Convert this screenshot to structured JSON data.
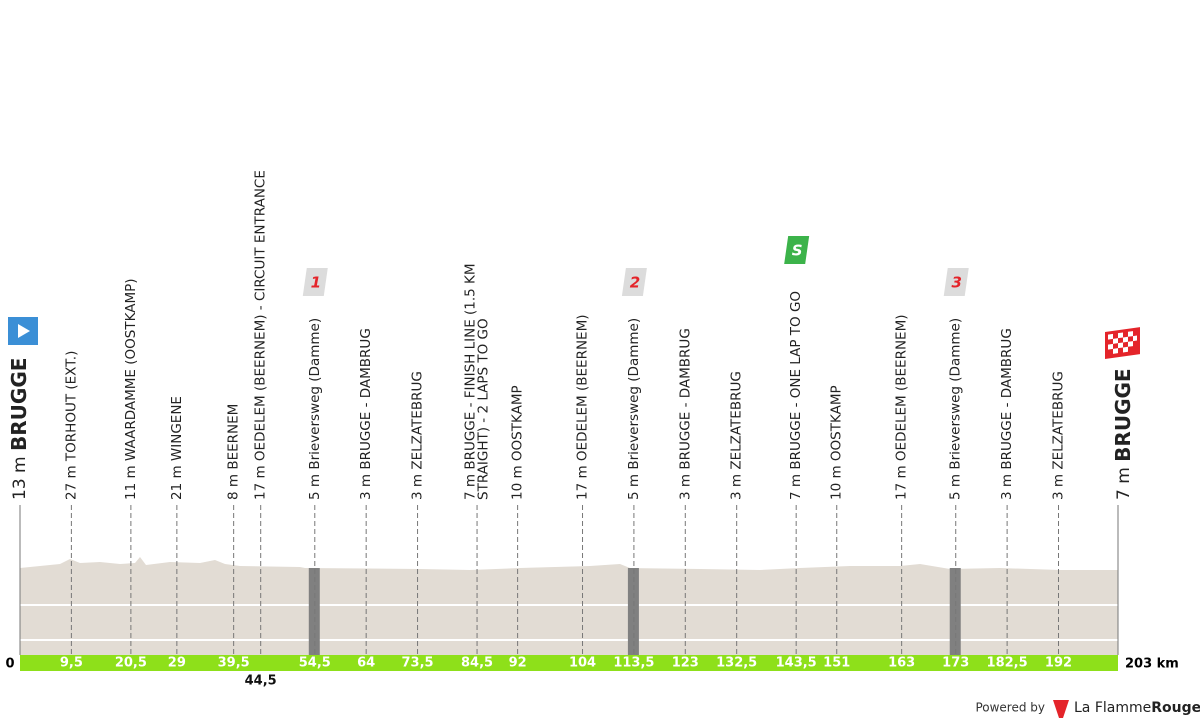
{
  "start": {
    "elevation": "13 m",
    "name": "BRUGGE",
    "km": "0"
  },
  "finish": {
    "elevation": "7 m",
    "name": "BRUGGE",
    "km": "203 km"
  },
  "waypoints": [
    {
      "lines": [
        "27 m TORHOUT (EXT.)"
      ],
      "km": "9,5"
    },
    {
      "lines": [
        "11 m WAARDAMME (OOSTKAMP)"
      ],
      "km": "20,5"
    },
    {
      "lines": [
        "21 m WINGENE"
      ],
      "km": "29"
    },
    {
      "lines": [
        "8 m BEERNEM"
      ],
      "km": "39,5"
    },
    {
      "lines": [
        "17 m OEDELEM (BEERNEM) - CIRCUIT ENTRANCE"
      ],
      "km": "44,5",
      "km_below": true
    },
    {
      "lines": [
        "5 m Brieversweg (Damme)"
      ],
      "km": "54,5",
      "badge": "1",
      "badge_color": "#dcdcdc",
      "sector": true
    },
    {
      "lines": [
        "3 m BRUGGE - DAMBRUG"
      ],
      "km": "64"
    },
    {
      "lines": [
        "3 m ZELZATEBRUG"
      ],
      "km": "73,5"
    },
    {
      "lines": [
        "7 m BRUGGE - FINISH LINE (1.5 KM",
        "STRAIGHT) - 2 LAPS TO GO"
      ],
      "km": "84,5"
    },
    {
      "lines": [
        "10 m OOSTKAMP"
      ],
      "km": "92"
    },
    {
      "lines": [
        "17 m OEDELEM (BEERNEM)"
      ],
      "km": "104"
    },
    {
      "lines": [
        "5 m Brieversweg (Damme)"
      ],
      "km": "113,5",
      "badge": "2",
      "badge_color": "#dcdcdc",
      "sector": true
    },
    {
      "lines": [
        "3 m BRUGGE - DAMBRUG"
      ],
      "km": "123"
    },
    {
      "lines": [
        "3 m ZELZATEBRUG"
      ],
      "km": "132,5"
    },
    {
      "lines": [
        "7 m BRUGGE - ONE LAP TO GO"
      ],
      "km": "143,5",
      "badge": "S",
      "badge_color": "#3cb34a"
    },
    {
      "lines": [
        "10 m OOSTKAMP"
      ],
      "km": "151"
    },
    {
      "lines": [
        "17 m OEDELEM (BEERNEM)"
      ],
      "km": "163"
    },
    {
      "lines": [
        "5 m Brieversweg (Damme)"
      ],
      "km": "173",
      "badge": "3",
      "badge_color": "#dcdcdc",
      "sector": true
    },
    {
      "lines": [
        "3 m BRUGGE - DAMBRUG"
      ],
      "km": "182,5"
    },
    {
      "lines": [
        "3 m ZELZATEBRUG"
      ],
      "km": "192"
    }
  ],
  "footer": {
    "powered": "Powered by",
    "brand": "La Flamme",
    "brand_bold": "Rouge"
  }
}
